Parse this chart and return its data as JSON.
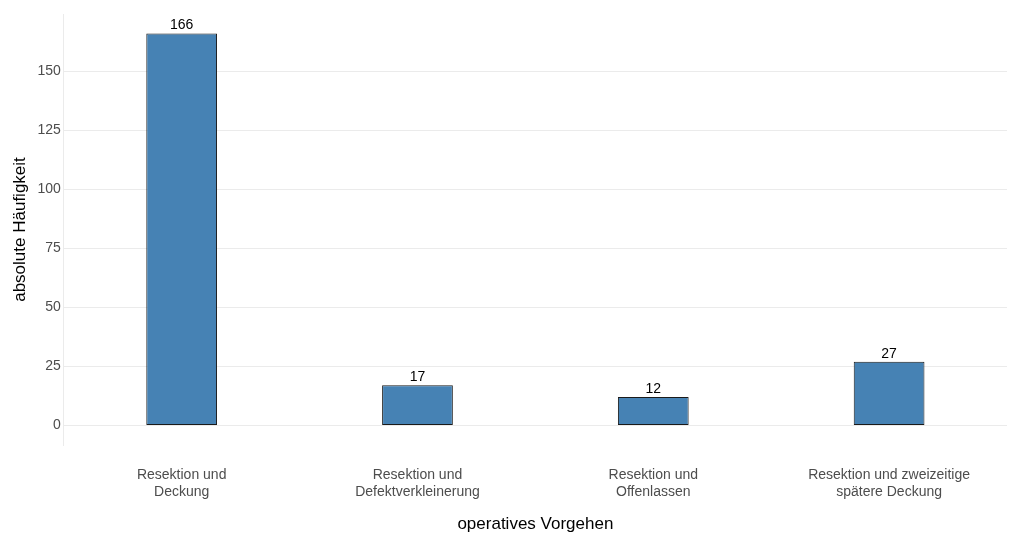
{
  "chart_data": {
    "type": "bar",
    "xlabel": "operatives Vorgehen",
    "ylabel": "absolute Häufigkeit",
    "categories": [
      "Resektion und\nDeckung",
      "Resektion und\nDefektverkleinerung",
      "Resektion und\nOffenlassen",
      "Resektion und zweizeitige\nspätere Deckung"
    ],
    "values": [
      166,
      17,
      12,
      27
    ],
    "color": "#4682b4",
    "ylim": [
      -8.3,
      174.3
    ],
    "yticks": [
      0,
      25,
      50,
      75,
      100,
      125,
      150
    ],
    "grid": "y",
    "data_labels": true,
    "legend": false
  }
}
